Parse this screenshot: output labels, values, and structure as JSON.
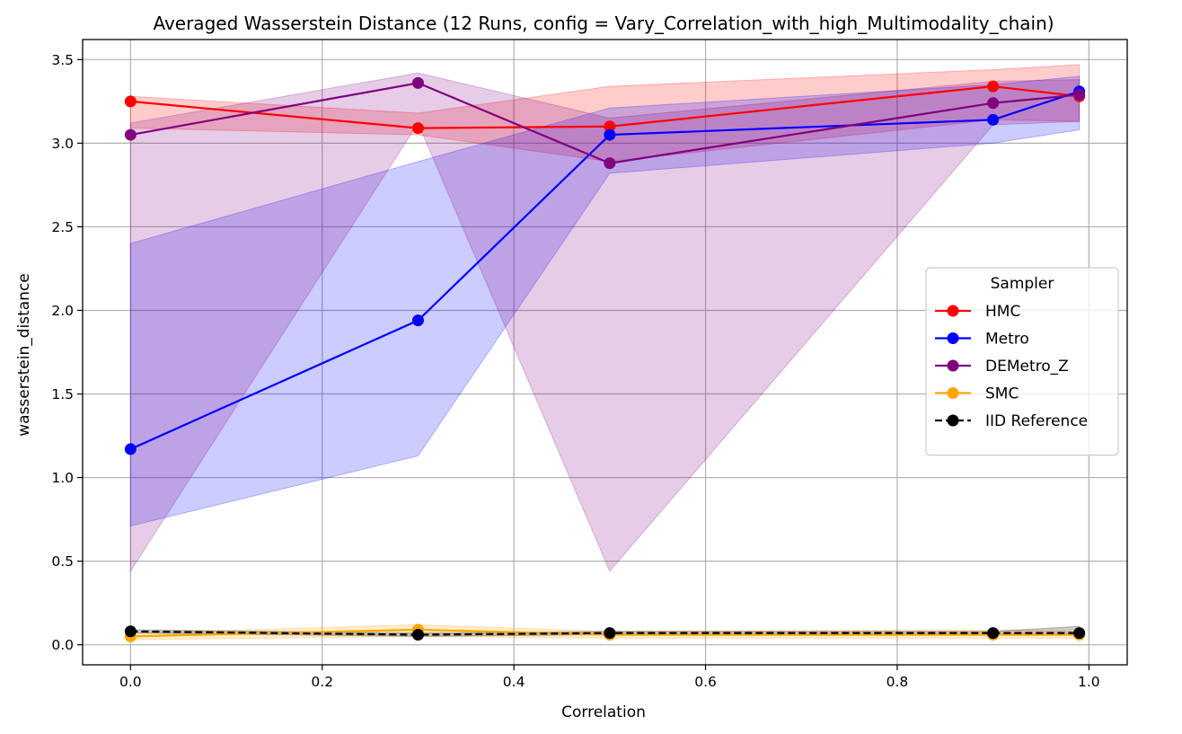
{
  "chart_data": {
    "type": "line",
    "title": "Averaged Wasserstein Distance (12 Runs, config = Vary_Correlation_with_high_Multimodality_chain)",
    "xlabel": "Correlation",
    "ylabel": "wasserstein_distance",
    "xlim": [
      -0.05,
      1.04
    ],
    "ylim": [
      -0.12,
      3.62
    ],
    "xticks": [
      0.0,
      0.2,
      0.4,
      0.6,
      0.8,
      1.0
    ],
    "xtick_labels": [
      "0.0",
      "0.2",
      "0.4",
      "0.6",
      "0.8",
      "1.0"
    ],
    "yticks": [
      0.0,
      0.5,
      1.0,
      1.5,
      2.0,
      2.5,
      3.0,
      3.5
    ],
    "ytick_labels": [
      "0.0",
      "0.5",
      "1.0",
      "1.5",
      "2.0",
      "2.5",
      "3.0",
      "3.5"
    ],
    "grid": true,
    "legend": {
      "title": "Sampler",
      "placement": "center-right"
    },
    "x": [
      0.0,
      0.3,
      0.5,
      0.9,
      0.99
    ],
    "series": [
      {
        "name": "HMC",
        "color": "#ff0000",
        "dashed": false,
        "values": [
          3.25,
          3.09,
          3.1,
          3.34,
          3.28
        ],
        "lower": [
          3.09,
          3.05,
          2.89,
          3.14,
          3.13
        ],
        "upper": [
          3.28,
          3.18,
          3.34,
          3.44,
          3.47
        ]
      },
      {
        "name": "Metro",
        "color": "#0000ff",
        "dashed": false,
        "values": [
          1.17,
          1.94,
          3.05,
          3.14,
          3.31
        ],
        "lower": [
          0.71,
          1.13,
          2.82,
          3.0,
          3.08
        ],
        "upper": [
          2.4,
          2.89,
          3.21,
          3.35,
          3.4
        ]
      },
      {
        "name": "DEMetro_Z",
        "color": "#800080",
        "dashed": false,
        "values": [
          3.05,
          3.36,
          2.88,
          3.24,
          3.29
        ],
        "lower": [
          0.44,
          3.12,
          0.44,
          3.11,
          3.13
        ],
        "upper": [
          3.12,
          3.42,
          3.15,
          3.37,
          3.38
        ]
      },
      {
        "name": "SMC",
        "color": "#ffa500",
        "dashed": false,
        "values": [
          0.05,
          0.09,
          0.06,
          0.06,
          0.06
        ],
        "lower": [
          0.03,
          0.05,
          0.04,
          0.04,
          0.04
        ],
        "upper": [
          0.07,
          0.12,
          0.08,
          0.09,
          0.08
        ]
      },
      {
        "name": "IID Reference",
        "color": "#000000",
        "dashed": true,
        "values": [
          0.08,
          0.06,
          0.07,
          0.07,
          0.07
        ],
        "lower": [
          0.07,
          0.05,
          0.06,
          0.06,
          0.06
        ],
        "upper": [
          0.09,
          0.07,
          0.08,
          0.08,
          0.11
        ]
      }
    ]
  }
}
